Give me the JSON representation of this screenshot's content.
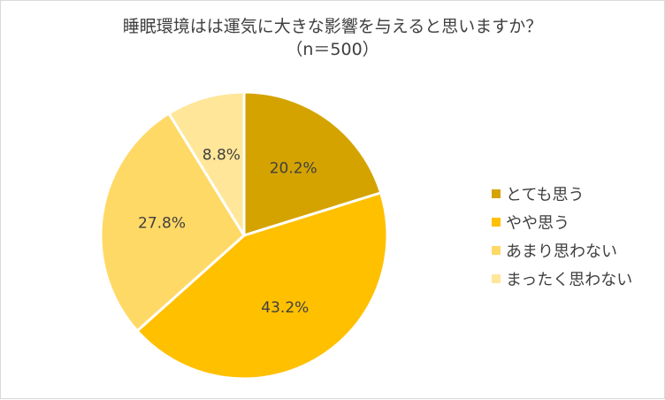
{
  "chart_data": {
    "type": "pie",
    "title": "睡眠環境はは運気に大きな影響を与えると思いますか？",
    "subtitle": "（n＝500）",
    "categories": [
      "とても思う",
      "やや思う",
      "あまり思わない",
      "まったく思わない"
    ],
    "values": [
      20.2,
      43.2,
      27.8,
      8.8
    ],
    "labels": [
      "20.2%",
      "43.2%",
      "27.8%",
      "8.8%"
    ],
    "colors": [
      "#d4a300",
      "#ffc000",
      "#ffd966",
      "#ffe699"
    ],
    "legend_position": "right",
    "start": "12 o'clock, clockwise"
  }
}
